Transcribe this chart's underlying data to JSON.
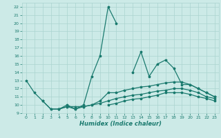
{
  "xlabel": "Humidex (Indice chaleur)",
  "bg_color": "#cceae7",
  "grid_color": "#aad4d0",
  "line_color": "#1a7a6e",
  "xlim": [
    -0.5,
    23.5
  ],
  "ylim": [
    9,
    22.5
  ],
  "xticks": [
    0,
    1,
    2,
    3,
    4,
    5,
    6,
    7,
    8,
    9,
    10,
    11,
    12,
    13,
    14,
    15,
    16,
    17,
    18,
    19,
    20,
    21,
    22,
    23
  ],
  "yticks": [
    9,
    10,
    11,
    12,
    13,
    14,
    15,
    16,
    17,
    18,
    19,
    20,
    21,
    22
  ],
  "series1_x": [
    0,
    1,
    2,
    3,
    4,
    5,
    6,
    7,
    8,
    9,
    10,
    11,
    12,
    13,
    14,
    15,
    16,
    17,
    18,
    19,
    20,
    21,
    22,
    23
  ],
  "series1_y": [
    13.0,
    11.5,
    10.5,
    9.5,
    9.5,
    10.0,
    9.5,
    10.0,
    13.5,
    16.0,
    22.0,
    20.0,
    null,
    14.0,
    16.5,
    13.5,
    15.0,
    15.5,
    14.5,
    12.5,
    12.5,
    12.0,
    11.5,
    11.0
  ],
  "series2_x": [
    0,
    1,
    2,
    3,
    4,
    5,
    6,
    7,
    8,
    9,
    10,
    11,
    12,
    13,
    14,
    15,
    16,
    17,
    18,
    19,
    20,
    21,
    22,
    23
  ],
  "series2_y": [
    null,
    null,
    10.5,
    9.5,
    9.5,
    9.8,
    9.5,
    9.8,
    10.0,
    10.5,
    11.5,
    11.5,
    11.8,
    12.0,
    12.2,
    12.3,
    12.5,
    12.7,
    12.8,
    12.8,
    12.5,
    12.0,
    11.5,
    11.0
  ],
  "series3_x": [
    0,
    1,
    2,
    3,
    4,
    5,
    6,
    7,
    8,
    9,
    10,
    11,
    12,
    13,
    14,
    15,
    16,
    17,
    18,
    19,
    20,
    21,
    22,
    23
  ],
  "series3_y": [
    null,
    null,
    null,
    null,
    9.5,
    9.8,
    9.8,
    9.8,
    10.0,
    10.2,
    10.5,
    10.8,
    11.0,
    11.2,
    11.3,
    11.5,
    11.7,
    11.8,
    12.0,
    12.0,
    11.8,
    11.5,
    11.0,
    10.8
  ],
  "series4_x": [
    0,
    1,
    2,
    3,
    4,
    5,
    6,
    7,
    8,
    9,
    10,
    11,
    12,
    13,
    14,
    15,
    16,
    17,
    18,
    19,
    20,
    21,
    22,
    23
  ],
  "series4_y": [
    null,
    null,
    null,
    null,
    null,
    null,
    null,
    null,
    null,
    null,
    10.0,
    10.2,
    10.5,
    10.7,
    10.8,
    11.0,
    11.2,
    11.5,
    11.5,
    11.5,
    11.3,
    11.0,
    10.8,
    10.5
  ]
}
